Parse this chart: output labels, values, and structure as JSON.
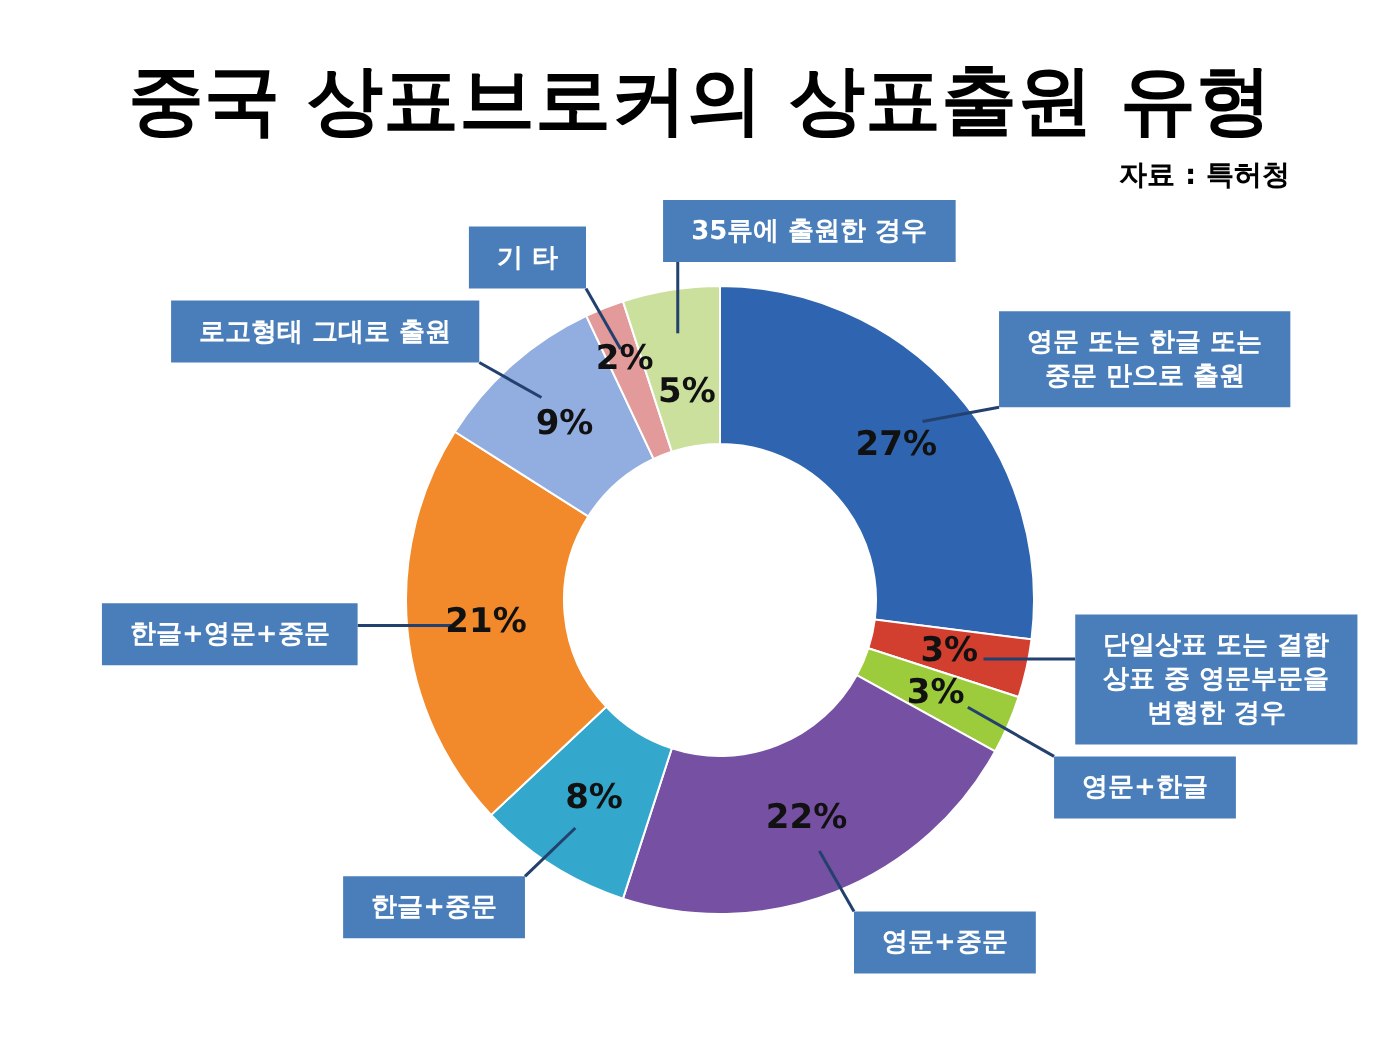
{
  "chart_data": {
    "type": "donut",
    "title": "중국 상표브로커의 상표출원 유형",
    "annotations": [
      "자료 : 특허청"
    ],
    "categories": [
      "영문 또는 한글 또는 중문 만으로 출원",
      "단일상표 또는 결합상표 중 영문부문을 변형한 경우",
      "영문+한글",
      "영문+중문",
      "한글+중문",
      "한글+영문+중문",
      "로고형태 그대로 출원",
      "기 타",
      "35류에 출원한 경우"
    ],
    "values": [
      27,
      3,
      3,
      22,
      8,
      21,
      9,
      2,
      5
    ],
    "colors": [
      "#2e64b0",
      "#d23f2f",
      "#9ccc3c",
      "#7651a3",
      "#33a7cc",
      "#f28a2c",
      "#92aee0",
      "#e39a9a",
      "#cbe09c"
    ],
    "value_labels": [
      "27%",
      "3%",
      "3%",
      "22%",
      "8%",
      "21%",
      "9%",
      "2%",
      "5%"
    ]
  }
}
